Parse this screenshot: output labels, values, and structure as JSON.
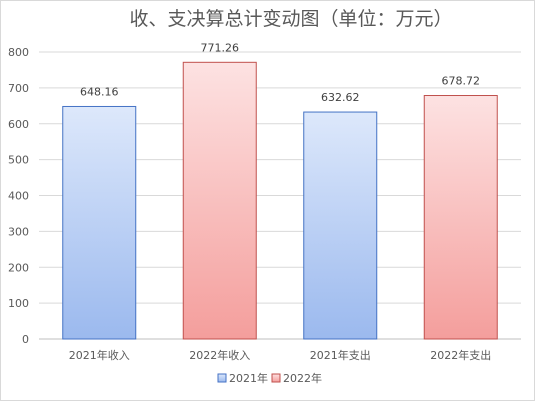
{
  "chart_data": {
    "type": "bar",
    "title": "收、支决算总计变动图（单位：万元）",
    "categories": [
      "2021年收入",
      "2022年收入",
      "2021年支出",
      "2022年支出"
    ],
    "values": [
      648.16,
      771.26,
      632.62,
      678.72
    ],
    "value_labels": [
      "648.16",
      "771.26",
      "632.62",
      "678.72"
    ],
    "bar_series": [
      "2021年",
      "2022年",
      "2021年",
      "2022年"
    ],
    "series": [
      {
        "name": "2021年",
        "color": "#4472c4",
        "fill_top": "#dde8fb",
        "fill_bottom": "#9bb9ee"
      },
      {
        "name": "2022年",
        "color": "#c0504d",
        "fill_top": "#fde2e2",
        "fill_bottom": "#f49e9c"
      }
    ],
    "ylim": [
      0,
      800
    ],
    "yticks": [
      "0",
      "100",
      "200",
      "300",
      "400",
      "500",
      "600",
      "700",
      "800"
    ],
    "grid": true,
    "legend_position": "bottom"
  }
}
